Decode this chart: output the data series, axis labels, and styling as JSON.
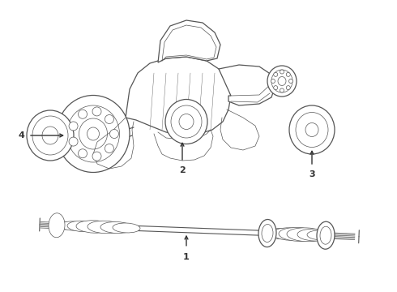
{
  "bg_color": "#ffffff",
  "line_color": "#555555",
  "line_width": 0.9,
  "thin_line": 0.5,
  "fig_width": 4.9,
  "fig_height": 3.6,
  "dpi": 100,
  "arrow_color": "#333333",
  "font_size": 8,
  "font_weight": "bold"
}
